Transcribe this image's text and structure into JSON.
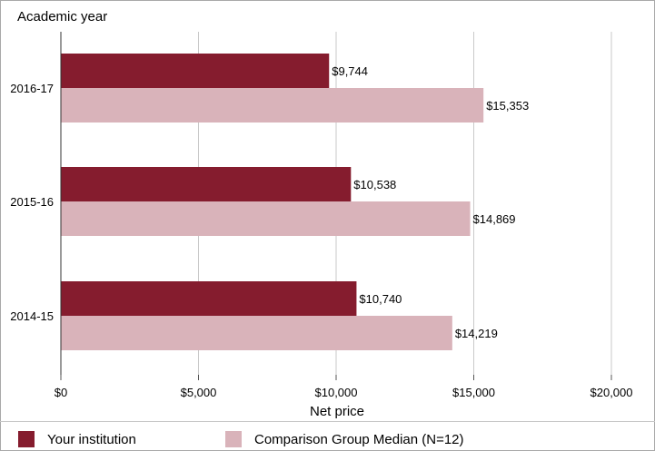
{
  "chart_data": {
    "type": "bar",
    "orientation": "horizontal",
    "ylabel": "Academic year",
    "xlabel": "Net price",
    "categories": [
      "2016-17",
      "2015-16",
      "2014-15"
    ],
    "series": [
      {
        "name": "Your institution",
        "color": "#851c2e",
        "values": [
          9744,
          10538,
          10740
        ],
        "labels": [
          "$9,744",
          "$10,538",
          "$10,740"
        ]
      },
      {
        "name": "Comparison Group Median (N=12)",
        "color": "#d9b3ba",
        "values": [
          15353,
          14869,
          14219
        ],
        "labels": [
          "$15,353",
          "$14,869",
          "$14,219"
        ]
      }
    ],
    "xlim": [
      0,
      20000
    ],
    "xticks": [
      0,
      5000,
      10000,
      15000,
      20000
    ],
    "xtick_labels": [
      "$0",
      "$5,000",
      "$10,000",
      "$15,000",
      "$20,000"
    ],
    "grid": true,
    "legend": "bottom"
  }
}
